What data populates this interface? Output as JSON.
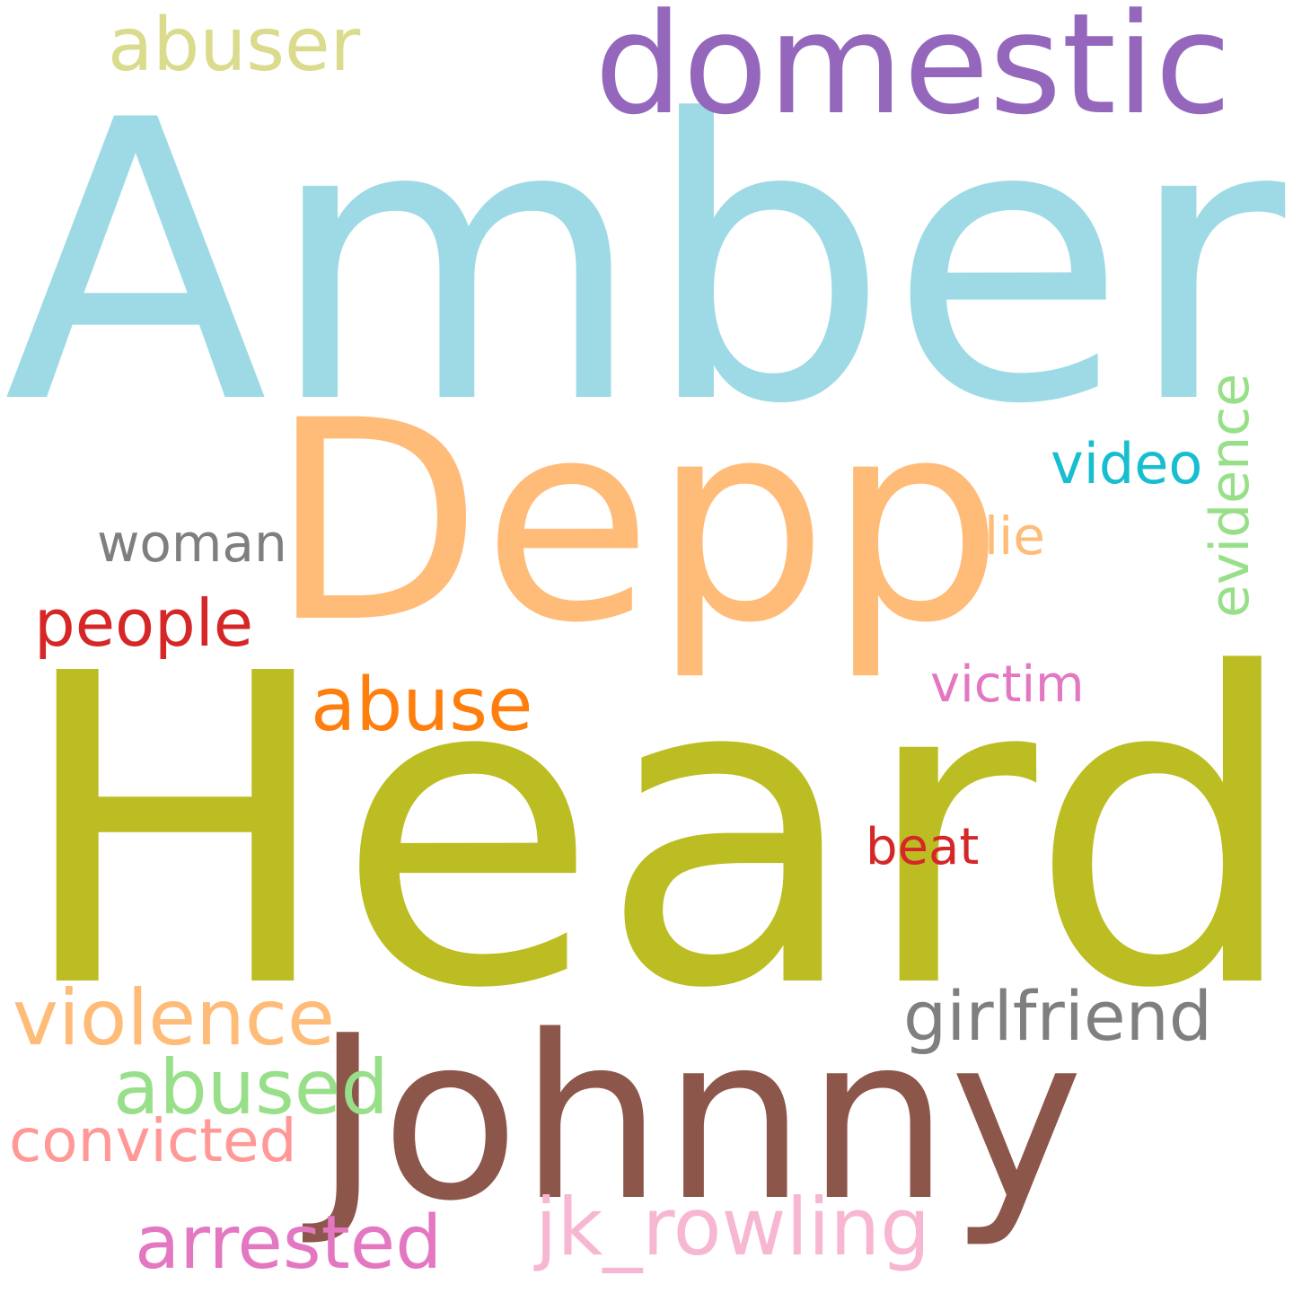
{
  "words": [
    {
      "text": "Amber",
      "color": "#9edae5"
    },
    {
      "text": "Heard",
      "color": "#bcbd22"
    },
    {
      "text": "Depp",
      "color": "#ffbb78"
    },
    {
      "text": "Johnny",
      "color": "#8c564b"
    },
    {
      "text": "domestic",
      "color": "#9467bd"
    },
    {
      "text": "abuser",
      "color": "#dbdb8d"
    },
    {
      "text": "video",
      "color": "#17becf"
    },
    {
      "text": "evidence",
      "color": "#98df8a"
    },
    {
      "text": "lie",
      "color": "#ffbb78"
    },
    {
      "text": "woman",
      "color": "#7f7f7f"
    },
    {
      "text": "people",
      "color": "#d62728"
    },
    {
      "text": "abuse",
      "color": "#ff7f0e"
    },
    {
      "text": "victim",
      "color": "#e377c2"
    },
    {
      "text": "beat",
      "color": "#d62728"
    },
    {
      "text": "violence",
      "color": "#ffbb78"
    },
    {
      "text": "girlfriend",
      "color": "#7f7f7f"
    },
    {
      "text": "abused",
      "color": "#98df8a"
    },
    {
      "text": "convicted",
      "color": "#ff9896"
    },
    {
      "text": "arrested",
      "color": "#e377c2"
    },
    {
      "text": "jk_rowling",
      "color": "#f7b6d2"
    }
  ]
}
